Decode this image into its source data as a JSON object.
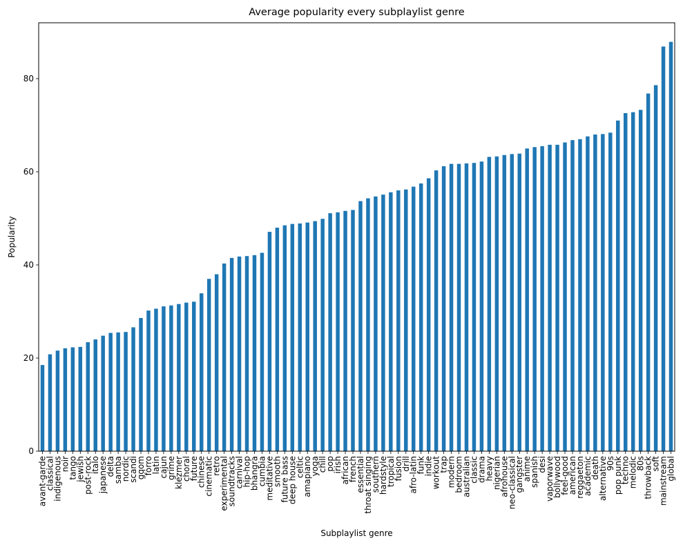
{
  "chart_data": {
    "type": "bar",
    "title": "Average popularity every subplaylist genre",
    "xlabel": "Subplaylist genre",
    "ylabel": "Popularity",
    "ylim": [
      0,
      92
    ],
    "yticks": [
      0,
      20,
      40,
      60,
      80
    ],
    "grid": false,
    "bar_color": "#1f77b4",
    "categories": [
      "avant-garde",
      "classical",
      "indigenous",
      "noir",
      "tango",
      "jewish",
      "post-rock",
      "italo",
      "japanese",
      "delta",
      "samba",
      "nordic",
      "scandi",
      "gqom",
      "forro",
      "latin",
      "cajun",
      "grime",
      "klezmer",
      "choral",
      "future",
      "chinese",
      "cinematic",
      "retro",
      "experimental",
      "soundtracks",
      "carnival",
      "hip-hop",
      "bhangra",
      "cumbia",
      "meditative",
      "smooth",
      "future bass",
      "deep house",
      "celtic",
      "amapiano",
      "yoga",
      "chill",
      "pop",
      "irish",
      "african",
      "french",
      "essential",
      "throat singing",
      "southern",
      "hardstyle",
      "tropical",
      "fusion",
      "drill",
      "afro-latin",
      "funk",
      "indie",
      "workout",
      "trap",
      "modern",
      "bedroom",
      "australian",
      "classic",
      "drama",
      "heavy",
      "nigerian",
      "afrohouse",
      "neo-classical",
      "gangster",
      "anime",
      "spanish",
      "desi",
      "vaporwave",
      "bollywood",
      "feel-good",
      "american",
      "reggaeton",
      "academic",
      "death",
      "alternative",
      "90s",
      "pop punk",
      "techno",
      "melodic",
      "80s",
      "throwback",
      "soft",
      "mainstream",
      "global"
    ],
    "values": [
      18.5,
      20.8,
      21.6,
      22.1,
      22.3,
      22.4,
      23.4,
      24.0,
      24.8,
      25.4,
      25.5,
      25.6,
      26.6,
      28.6,
      30.2,
      30.6,
      31.1,
      31.3,
      31.6,
      31.9,
      32.1,
      33.9,
      37.0,
      38.0,
      40.3,
      41.5,
      41.8,
      41.9,
      42.1,
      42.6,
      47.1,
      48.0,
      48.5,
      48.8,
      48.9,
      49.1,
      49.4,
      49.9,
      51.1,
      51.3,
      51.6,
      51.8,
      53.7,
      54.3,
      54.7,
      55.1,
      55.6,
      56.0,
      56.2,
      56.8,
      57.5,
      58.6,
      60.3,
      61.2,
      61.7,
      61.7,
      61.8,
      61.9,
      62.2,
      63.2,
      63.3,
      63.6,
      63.8,
      63.9,
      65.0,
      65.3,
      65.5,
      65.8,
      65.8,
      66.3,
      66.8,
      67.0,
      67.6,
      68.0,
      68.1,
      68.4,
      71.0,
      72.6,
      72.8,
      73.3,
      76.8,
      78.6,
      86.9,
      87.9
    ]
  }
}
